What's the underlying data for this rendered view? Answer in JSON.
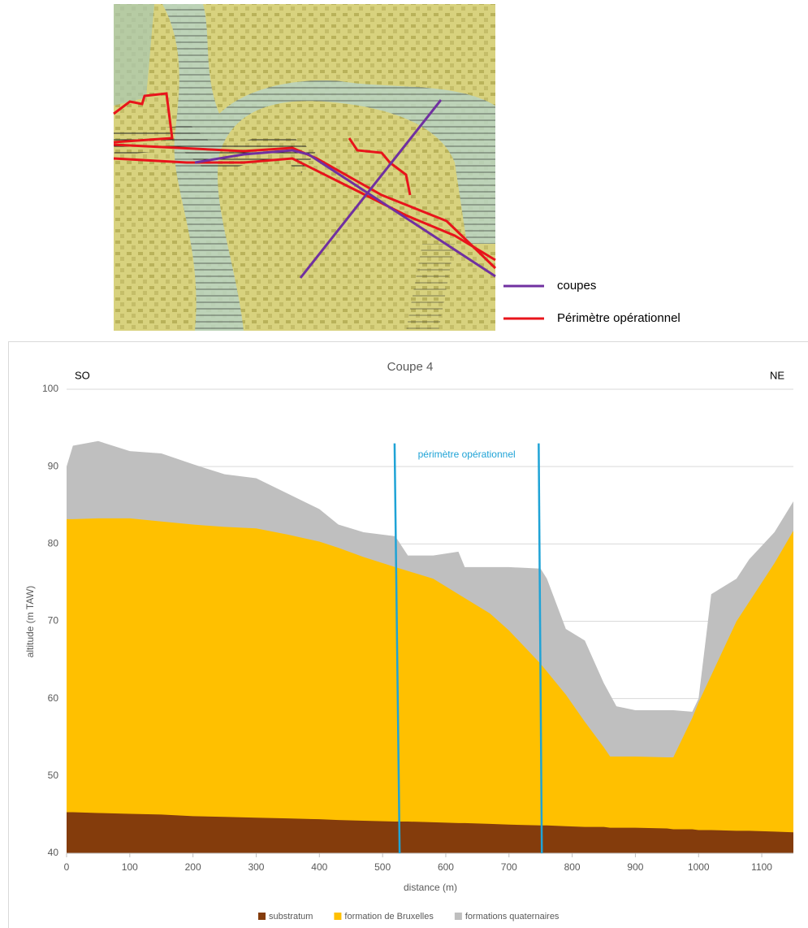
{
  "map": {
    "legend": [
      {
        "label": "coupes",
        "color": "#7030a0"
      },
      {
        "label": "Périmètre opérationnel",
        "color": "#e8141b"
      }
    ]
  },
  "chart_data": {
    "type": "area",
    "title": "Coupe 4",
    "x_label": "distance (m)",
    "y_label": "altitude (m TAW)",
    "left_label": "SO",
    "right_label": "NE",
    "x": [
      0,
      10,
      50,
      100,
      150,
      200,
      250,
      300,
      350,
      400,
      430,
      470,
      520,
      540,
      580,
      620,
      630,
      670,
      700,
      750,
      760,
      790,
      820,
      850,
      860,
      870,
      900,
      950,
      960,
      990,
      1000,
      1020,
      1060,
      1080,
      1120,
      1150
    ],
    "xlim": [
      0,
      1150
    ],
    "xticks": [
      0,
      100,
      200,
      300,
      400,
      500,
      600,
      700,
      800,
      900,
      1000,
      1100
    ],
    "ylim": [
      40,
      100
    ],
    "yticks": [
      40,
      50,
      60,
      70,
      80,
      90,
      100
    ],
    "grid": true,
    "series": [
      {
        "name": "substratum",
        "color": "#843c0c",
        "values": [
          45.3,
          45.3,
          45.2,
          45.1,
          45,
          44.8,
          44.7,
          44.6,
          44.5,
          44.4,
          44.3,
          44.2,
          44.1,
          44.1,
          44,
          43.9,
          43.9,
          43.8,
          43.7,
          43.6,
          43.6,
          43.5,
          43.4,
          43.4,
          43.3,
          43.3,
          43.3,
          43.2,
          43.1,
          43.1,
          43,
          43,
          42.9,
          42.9,
          42.8,
          42.7
        ]
      },
      {
        "name": "formation de Bruxelles",
        "color": "#ffc000",
        "values": [
          83.2,
          83.2,
          83.3,
          83.3,
          82.9,
          82.5,
          82.2,
          82,
          81.2,
          80.3,
          79.5,
          78.3,
          77,
          76.5,
          75.5,
          73.5,
          73,
          71,
          68.8,
          64.5,
          63.5,
          60.5,
          57,
          53.7,
          52.5,
          52.5,
          52.5,
          52.4,
          52.4,
          57.5,
          59.5,
          63,
          70,
          72.5,
          77.5,
          81.7
        ]
      },
      {
        "name": "formations quaternaires",
        "color": "#bfbfbf",
        "values": [
          90,
          92.7,
          93.3,
          92,
          91.7,
          90.3,
          89,
          88.5,
          86.5,
          84.5,
          82.5,
          81.5,
          81,
          78.5,
          78.5,
          79,
          77,
          77,
          77,
          76.8,
          75.5,
          69,
          67.5,
          62,
          60.5,
          59,
          58.5,
          58.5,
          58.5,
          58.3,
          60,
          73.5,
          75.5,
          78,
          81.5,
          85.5
        ]
      }
    ],
    "reference_lines": {
      "label": "périmètre opérationnel",
      "color": "#1fa3d6",
      "lines": [
        {
          "x": [
            519,
            527
          ],
          "y": [
            93,
            40
          ]
        },
        {
          "x": [
            747,
            752
          ],
          "y": [
            93,
            40
          ]
        }
      ]
    },
    "legend": "bottom"
  }
}
